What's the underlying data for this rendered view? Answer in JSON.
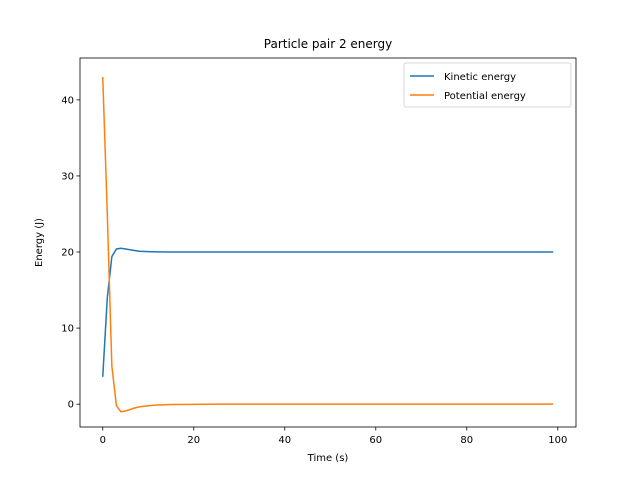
{
  "chart_data": {
    "type": "line",
    "title": "Particle pair 2 energy",
    "xlabel": "Time (s)",
    "ylabel": "Energy (J)",
    "xlim": [
      -5,
      104
    ],
    "ylim": [
      -3,
      45.5
    ],
    "xticks": [
      0,
      20,
      40,
      60,
      80,
      100
    ],
    "yticks": [
      0,
      10,
      20,
      30,
      40
    ],
    "grid": false,
    "legend_position": "top-right",
    "series": [
      {
        "name": "Kinetic energy",
        "color": "#1f77b4",
        "x": [
          0,
          1,
          2,
          3,
          4,
          5,
          6,
          7,
          8,
          10,
          12,
          15,
          20,
          30,
          40,
          60,
          80,
          99
        ],
        "y": [
          3.6,
          14,
          19.4,
          20.4,
          20.5,
          20.4,
          20.3,
          20.2,
          20.1,
          20.05,
          20.02,
          20.0,
          20.0,
          20.0,
          20.0,
          20.0,
          20.0,
          20.0
        ]
      },
      {
        "name": "Potential energy",
        "color": "#ff7f0e",
        "x": [
          0,
          1,
          2,
          3,
          4,
          5,
          6,
          7,
          8,
          10,
          12,
          15,
          20,
          25,
          30,
          40,
          60,
          80,
          99
        ],
        "y": [
          43,
          25,
          5,
          -0.2,
          -1.0,
          -0.9,
          -0.7,
          -0.5,
          -0.35,
          -0.2,
          -0.1,
          -0.05,
          -0.02,
          0,
          0,
          0,
          0,
          0,
          0
        ]
      }
    ]
  }
}
